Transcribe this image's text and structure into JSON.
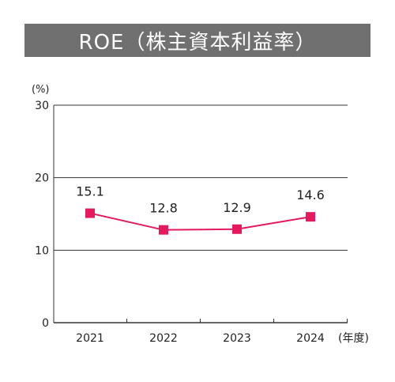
{
  "header": {
    "title": "ROE（株主資本利益率）"
  },
  "colors": {
    "title_bar": "#707070",
    "title_text": "#ffffff",
    "series": "#e5195e",
    "axis": "#333333",
    "text": "#222222"
  },
  "chart_data": {
    "type": "line",
    "title": "ROE（株主資本利益率）",
    "y_unit_label": "(%)",
    "x_unit_label": "(年度)",
    "categories": [
      "2021",
      "2022",
      "2023",
      "2024"
    ],
    "series": [
      {
        "values": [
          15.1,
          12.8,
          12.9,
          14.6
        ],
        "data_labels": [
          "15.1",
          "12.8",
          "12.9",
          "14.6"
        ],
        "marker": "square"
      }
    ],
    "ylim": [
      0,
      30
    ],
    "yticks": [
      0,
      10,
      20,
      30
    ],
    "ytick_labels": [
      "0",
      "10",
      "20",
      "30"
    ],
    "grid": true
  }
}
